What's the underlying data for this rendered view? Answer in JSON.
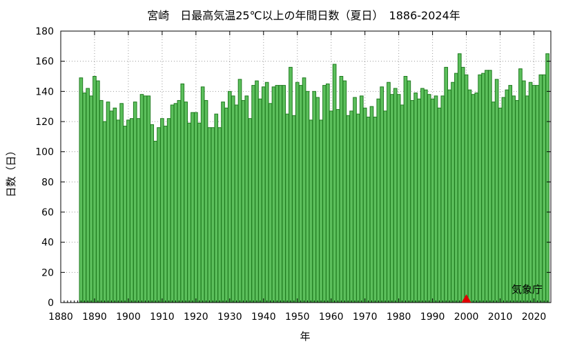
{
  "chart_data": {
    "type": "bar",
    "title": "宮崎　日最高気温25℃以上の年間日数（夏日）　1886-2024年",
    "xlabel": "年",
    "ylabel": "日数（日）",
    "source": "気象庁",
    "xlim": [
      1880,
      2025
    ],
    "ylim": [
      0,
      180
    ],
    "xticks": [
      1880,
      1890,
      1900,
      1910,
      1920,
      1930,
      1940,
      1950,
      1960,
      1970,
      1980,
      1990,
      2000,
      2010,
      2020
    ],
    "yticks": [
      0,
      20,
      40,
      60,
      80,
      100,
      120,
      140,
      160,
      180
    ],
    "grid": true,
    "bar_color": "#5cbf5c",
    "bar_edge_color": "#1e7a1e",
    "marker": {
      "x": 2000,
      "color": "#e00000"
    },
    "x": [
      1886,
      1887,
      1888,
      1889,
      1890,
      1891,
      1892,
      1893,
      1894,
      1895,
      1896,
      1897,
      1898,
      1899,
      1900,
      1901,
      1902,
      1903,
      1904,
      1905,
      1906,
      1907,
      1908,
      1909,
      1910,
      1911,
      1912,
      1913,
      1914,
      1915,
      1916,
      1917,
      1918,
      1919,
      1920,
      1921,
      1922,
      1923,
      1924,
      1925,
      1926,
      1927,
      1928,
      1929,
      1930,
      1931,
      1932,
      1933,
      1934,
      1935,
      1936,
      1937,
      1938,
      1939,
      1940,
      1941,
      1942,
      1943,
      1944,
      1945,
      1946,
      1947,
      1948,
      1949,
      1950,
      1951,
      1952,
      1953,
      1954,
      1955,
      1956,
      1957,
      1958,
      1959,
      1960,
      1961,
      1962,
      1963,
      1964,
      1965,
      1966,
      1967,
      1968,
      1969,
      1970,
      1971,
      1972,
      1973,
      1974,
      1975,
      1976,
      1977,
      1978,
      1979,
      1980,
      1981,
      1982,
      1983,
      1984,
      1985,
      1986,
      1987,
      1988,
      1989,
      1990,
      1991,
      1992,
      1993,
      1994,
      1995,
      1996,
      1997,
      1998,
      1999,
      2000,
      2001,
      2002,
      2003,
      2004,
      2005,
      2006,
      2007,
      2008,
      2009,
      2010,
      2011,
      2012,
      2013,
      2014,
      2015,
      2016,
      2017,
      2018,
      2019,
      2020,
      2021,
      2022,
      2023,
      2024
    ],
    "values": [
      149,
      139,
      142,
      137,
      150,
      147,
      134,
      120,
      133,
      127,
      129,
      121,
      132,
      117,
      121,
      122,
      133,
      122,
      138,
      137,
      137,
      118,
      107,
      116,
      122,
      117,
      122,
      131,
      132,
      134,
      145,
      133,
      119,
      126,
      126,
      119,
      143,
      134,
      116,
      116,
      125,
      116,
      133,
      129,
      140,
      137,
      131,
      148,
      134,
      137,
      122,
      144,
      147,
      135,
      143,
      146,
      132,
      143,
      144,
      144,
      144,
      125,
      156,
      124,
      146,
      144,
      149,
      140,
      121,
      140,
      136,
      121,
      144,
      145,
      127,
      158,
      128,
      150,
      147,
      124,
      127,
      136,
      125,
      137,
      129,
      123,
      130,
      123,
      135,
      143,
      127,
      146,
      138,
      142,
      138,
      131,
      150,
      147,
      134,
      139,
      135,
      142,
      141,
      138,
      135,
      137,
      129,
      137,
      156,
      141,
      146,
      152,
      165,
      156,
      151,
      141,
      138,
      139,
      151,
      152,
      154,
      154,
      133,
      148,
      129,
      136,
      141,
      144,
      137,
      134,
      155,
      147,
      137,
      146,
      144,
      144,
      151,
      151,
      165
    ]
  }
}
